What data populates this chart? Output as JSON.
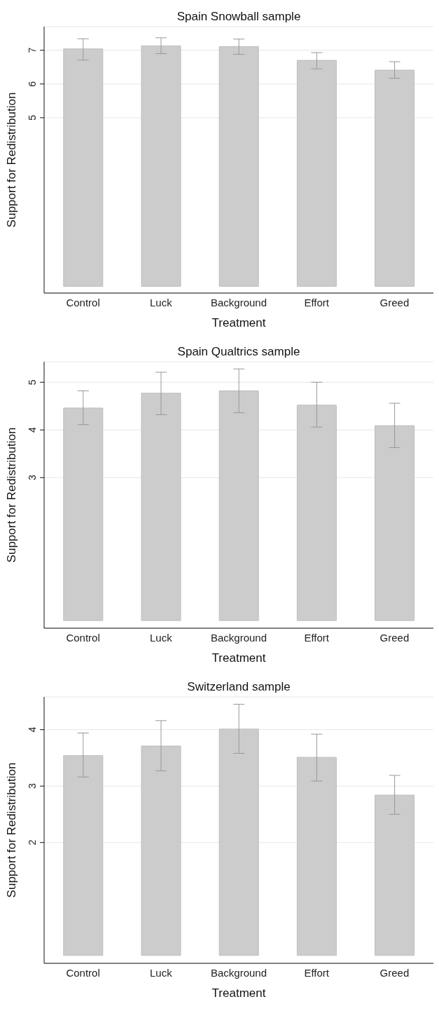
{
  "chart_data": [
    {
      "type": "bar",
      "title": "Spain Snowball sample",
      "xlabel": "Treatment",
      "ylabel": "Support for Redistribution",
      "categories": [
        "Control",
        "Luck",
        "Background",
        "Effort",
        "Greed"
      ],
      "values": [
        7.04,
        7.13,
        7.11,
        6.7,
        6.41
      ],
      "errors": [
        [
          6.71,
          7.34
        ],
        [
          6.9,
          7.37
        ],
        [
          6.88,
          7.33
        ],
        [
          6.45,
          6.93
        ],
        [
          6.17,
          6.66
        ]
      ],
      "color": "#cccccc",
      "ylim": [
        -0.2,
        7.7
      ],
      "yticks": [
        5,
        6,
        7
      ],
      "grid": "y"
    },
    {
      "type": "bar",
      "title": "Spain Qualtrics sample",
      "xlabel": "Treatment",
      "ylabel": "Support for Redistribution",
      "categories": [
        "Control",
        "Luck",
        "Background",
        "Effort",
        "Greed"
      ],
      "values": [
        4.46,
        4.77,
        4.82,
        4.52,
        4.09
      ],
      "errors": [
        [
          4.11,
          4.82
        ],
        [
          4.32,
          5.21
        ],
        [
          4.36,
          5.28
        ],
        [
          4.06,
          5.0
        ],
        [
          3.63,
          4.56
        ]
      ],
      "color": "#cccccc",
      "ylim": [
        -0.16,
        5.43
      ],
      "yticks": [
        3,
        4,
        5
      ],
      "grid": "y"
    },
    {
      "type": "bar",
      "title": "Switzerland sample",
      "xlabel": "Treatment",
      "ylabel": "Support for Redistribution",
      "categories": [
        "Control",
        "Luck",
        "Background",
        "Effort",
        "Greed"
      ],
      "values": [
        3.54,
        3.71,
        4.01,
        3.51,
        2.84
      ],
      "errors": [
        [
          3.16,
          3.94
        ],
        [
          3.27,
          4.16
        ],
        [
          3.58,
          4.45
        ],
        [
          3.09,
          3.92
        ],
        [
          2.5,
          3.19
        ]
      ],
      "color": "#cccccc",
      "ylim": [
        -0.14,
        4.58
      ],
      "yticks": [
        2,
        3,
        4
      ],
      "grid": "y"
    }
  ]
}
